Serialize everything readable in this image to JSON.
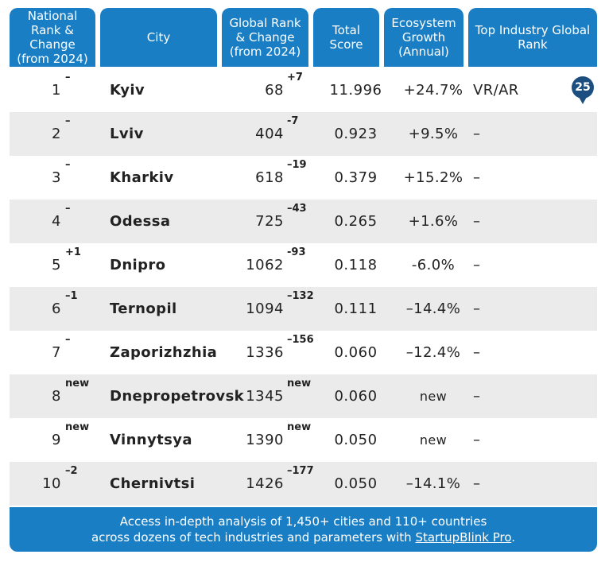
{
  "headers": {
    "national_rank": "National Rank & Change (from 2024)",
    "city": "City",
    "global_rank": "Global Rank & Change (from 2024)",
    "total_score": "Total Score",
    "growth": "Ecosystem Growth (Annual)",
    "top_industry": "Top Industry Global Rank"
  },
  "rows": [
    {
      "rank": "1",
      "rank_change": "–",
      "city": "Kyiv",
      "global_rank": "68",
      "global_change": "+7",
      "score": "11.996",
      "growth": "+24.7%",
      "industry": "VR/AR",
      "industry_rank": "25"
    },
    {
      "rank": "2",
      "rank_change": "–",
      "city": "Lviv",
      "global_rank": "404",
      "global_change": "-7",
      "score": "0.923",
      "growth": "+9.5%",
      "industry": "–"
    },
    {
      "rank": "3",
      "rank_change": "–",
      "city": "Kharkiv",
      "global_rank": "618",
      "global_change": "–19",
      "score": "0.379",
      "growth": "+15.2%",
      "industry": "–"
    },
    {
      "rank": "4",
      "rank_change": "–",
      "city": "Odessa",
      "global_rank": "725",
      "global_change": "–43",
      "score": "0.265",
      "growth": "+1.6%",
      "industry": "–"
    },
    {
      "rank": "5",
      "rank_change": "+1",
      "city": "Dnipro",
      "global_rank": "1062",
      "global_change": "-93",
      "score": "0.118",
      "growth": "-6.0%",
      "industry": "–"
    },
    {
      "rank": "6",
      "rank_change": "–1",
      "city": "Ternopil",
      "global_rank": "1094",
      "global_change": "–132",
      "score": "0.111",
      "growth": "–14.4%",
      "industry": "–"
    },
    {
      "rank": "7",
      "rank_change": "–",
      "city": "Zaporizhzhia",
      "global_rank": "1336",
      "global_change": "–156",
      "score": "0.060",
      "growth": "–12.4%",
      "industry": "–"
    },
    {
      "rank": "8",
      "rank_change": "new",
      "city": "Dnepropetrovsk",
      "global_rank": "1345",
      "global_change": "new",
      "score": "0.060",
      "growth": "new",
      "industry": "–"
    },
    {
      "rank": "9",
      "rank_change": "new",
      "city": "Vinnytsya",
      "global_rank": "1390",
      "global_change": "new",
      "score": "0.050",
      "growth": "new",
      "industry": "–"
    },
    {
      "rank": "10",
      "rank_change": "–2",
      "city": "Chernivtsi",
      "global_rank": "1426",
      "global_change": "–177",
      "score": "0.050",
      "growth": "–14.1%",
      "industry": "–"
    }
  ],
  "footer": {
    "line1": "Access in-depth analysis of 1,450+ cities and 110+ countries",
    "line2_prefix": "across dozens of tech industries and parameters with ",
    "link": "StartupBlink Pro",
    "line2_suffix": "."
  },
  "colors": {
    "header_bg": "#1a7ec4",
    "badge_bg": "#1c4e7f",
    "row_alt": "#ebebeb"
  }
}
